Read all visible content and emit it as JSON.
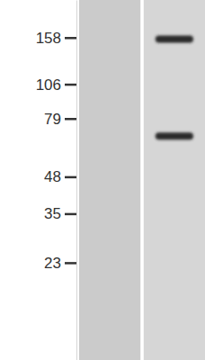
{
  "chart_data": {
    "type": "blot",
    "categories": [
      null,
      null
    ],
    "series": [
      {
        "values": [
          null,
          156
        ]
      },
      {
        "values": [
          null,
          68
        ]
      }
    ],
    "color": "#2a2a2a",
    "log": "y",
    "ylim": [
      10,
      218
    ],
    "yticks": [
      23,
      35,
      48,
      79,
      106,
      158
    ],
    "tick_labels": "y"
  }
}
